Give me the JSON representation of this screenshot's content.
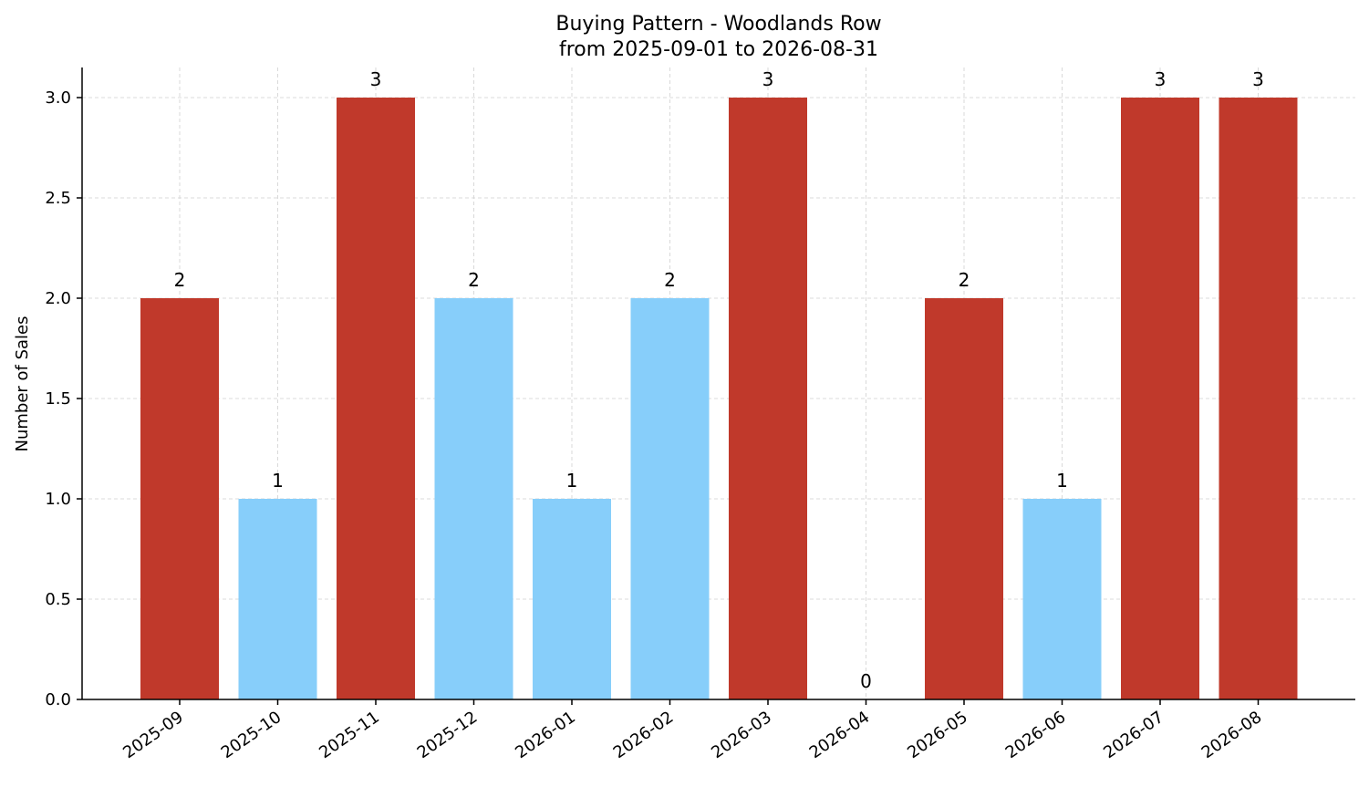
{
  "chart_data": {
    "type": "bar",
    "title": "Buying Pattern - Woodlands Row",
    "subtitle": "from 2025-09-01 to 2026-08-31",
    "xlabel": "",
    "ylabel": "Number of Sales",
    "categories": [
      "2025-09",
      "2025-10",
      "2025-11",
      "2025-12",
      "2026-01",
      "2026-02",
      "2026-03",
      "2026-04",
      "2026-05",
      "2026-06",
      "2026-07",
      "2026-08"
    ],
    "values": [
      2,
      1,
      3,
      2,
      1,
      2,
      3,
      0,
      2,
      1,
      3,
      3
    ],
    "bar_colors": [
      "#c0392b",
      "#87cefa",
      "#c0392b",
      "#87cefa",
      "#87cefa",
      "#87cefa",
      "#c0392b",
      "#87cefa",
      "#c0392b",
      "#87cefa",
      "#c0392b",
      "#c0392b"
    ],
    "ylim": [
      0,
      3.0
    ],
    "yticks": [
      "0.0",
      "0.5",
      "1.0",
      "1.5",
      "2.0",
      "2.5",
      "3.0"
    ],
    "grid": true,
    "legend": false
  }
}
